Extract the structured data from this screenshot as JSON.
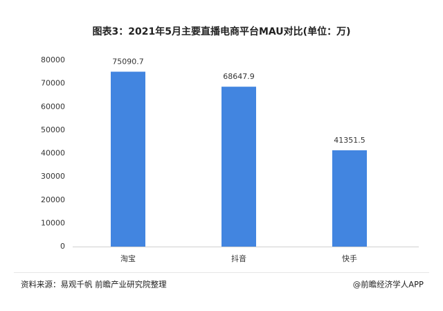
{
  "chart_data": {
    "type": "bar",
    "title": "图表3：2021年5月主要直播电商平台MAU对比(单位：万)",
    "categories": [
      "淘宝",
      "抖音",
      "快手"
    ],
    "values": [
      75090.7,
      68647.9,
      41351.5
    ],
    "color": "#4285e0",
    "ylim": [
      0,
      80000
    ],
    "yticks": [
      0,
      10000,
      20000,
      30000,
      40000,
      50000,
      60000,
      70000,
      80000
    ],
    "grid": false,
    "source": "资料来源：易观千帆 前瞻产业研究院整理",
    "credit": "@前瞻经济学人APP"
  }
}
